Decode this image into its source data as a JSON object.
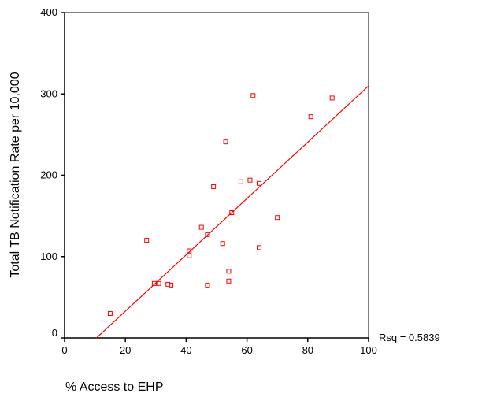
{
  "chart_data": {
    "type": "scatter",
    "title": "",
    "xlabel": "% Access to EHP",
    "ylabel": "Total TB Notification Rate per 10,000",
    "xlim": [
      0,
      100
    ],
    "ylim": [
      0,
      400
    ],
    "x_ticks": [
      "0",
      "20",
      "40",
      "60",
      "80",
      "100"
    ],
    "y_ticks": [
      "0",
      "100",
      "200",
      "300",
      "400"
    ],
    "grid": false,
    "legend": "none",
    "annotation": "Rsq = 0.5839",
    "marker_color": "#ff0000",
    "line_color": "#ff0000",
    "fit_line": {
      "x": [
        10.5,
        100
      ],
      "y": [
        0,
        310
      ]
    },
    "points": [
      {
        "x": 15,
        "y": 30
      },
      {
        "x": 27,
        "y": 120
      },
      {
        "x": 29.5,
        "y": 67
      },
      {
        "x": 31,
        "y": 67
      },
      {
        "x": 34,
        "y": 66
      },
      {
        "x": 35,
        "y": 65
      },
      {
        "x": 41,
        "y": 107
      },
      {
        "x": 41,
        "y": 101
      },
      {
        "x": 45,
        "y": 136
      },
      {
        "x": 47,
        "y": 127
      },
      {
        "x": 47,
        "y": 65
      },
      {
        "x": 49,
        "y": 186
      },
      {
        "x": 52,
        "y": 116
      },
      {
        "x": 53,
        "y": 241
      },
      {
        "x": 54,
        "y": 82
      },
      {
        "x": 54,
        "y": 70
      },
      {
        "x": 55,
        "y": 154
      },
      {
        "x": 58,
        "y": 192
      },
      {
        "x": 61,
        "y": 194
      },
      {
        "x": 62,
        "y": 298
      },
      {
        "x": 64,
        "y": 190
      },
      {
        "x": 64,
        "y": 111
      },
      {
        "x": 70,
        "y": 148
      },
      {
        "x": 81,
        "y": 272
      },
      {
        "x": 88,
        "y": 295
      }
    ]
  }
}
